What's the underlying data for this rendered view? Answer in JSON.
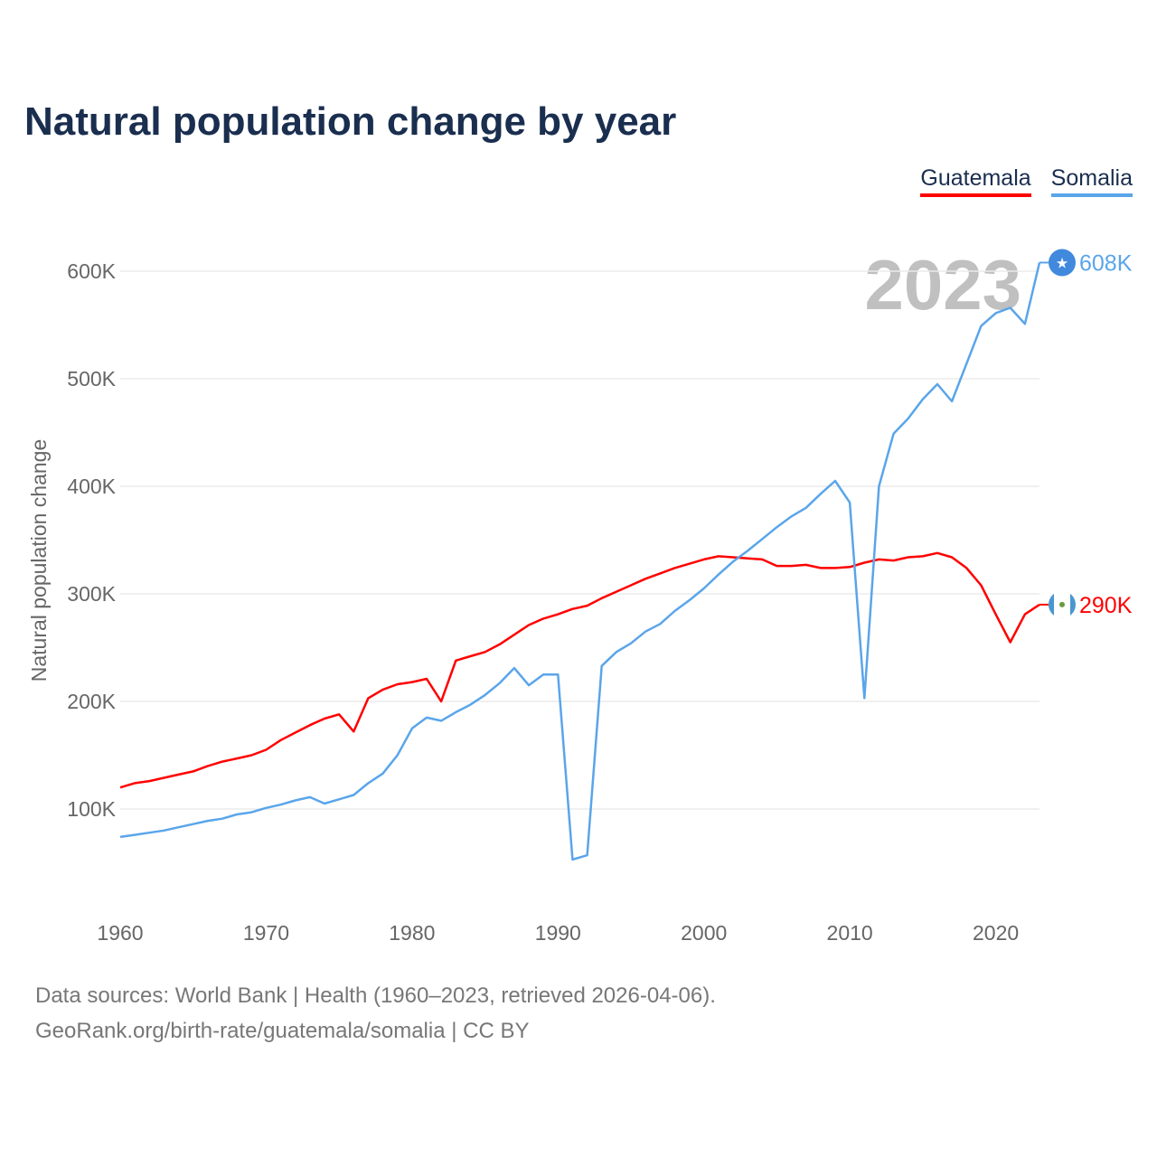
{
  "chart_data": {
    "type": "line",
    "title": "Natural population change by year",
    "ylabel": "Natural population change",
    "xlabel": "",
    "xlim": [
      1960,
      2023
    ],
    "ylim": [
      0,
      650000
    ],
    "x_ticks": [
      1960,
      1970,
      1980,
      1990,
      2000,
      2010,
      2020
    ],
    "y_ticks": [
      100000,
      200000,
      300000,
      400000,
      500000,
      600000
    ],
    "y_tick_labels": [
      "100K",
      "200K",
      "300K",
      "400K",
      "500K",
      "600K"
    ],
    "x_tick_labels": [
      "1960",
      "1970",
      "1980",
      "1990",
      "2000",
      "2010",
      "2020"
    ],
    "grid": true,
    "legend_placement": "top-right",
    "year_label": "2023",
    "series": [
      {
        "name": "Guatemala",
        "color": "#ff0000",
        "end_label": "290K",
        "flag_icon": "guatemala-flag-icon",
        "values": [
          120,
          124,
          126,
          129,
          132,
          135,
          140,
          144,
          147,
          150,
          155,
          164,
          171,
          178,
          184,
          188,
          172,
          203,
          211,
          216,
          218,
          221,
          200,
          238,
          242,
          246,
          253,
          262,
          271,
          277,
          281,
          286,
          289,
          296,
          302,
          308,
          314,
          319,
          324,
          328,
          332,
          335,
          334,
          333,
          332,
          326,
          326,
          327,
          324,
          324,
          325,
          329,
          332,
          331,
          334,
          335,
          338,
          334,
          324,
          308,
          281,
          255,
          281,
          290
        ]
      },
      {
        "name": "Somalia",
        "color": "#5aa5ea",
        "end_label": "608K",
        "flag_icon": "somalia-flag-icon",
        "values": [
          74,
          76,
          78,
          80,
          83,
          86,
          89,
          91,
          95,
          97,
          101,
          104,
          108,
          111,
          105,
          109,
          113,
          124,
          133,
          150,
          175,
          185,
          182,
          190,
          197,
          206,
          217,
          231,
          215,
          225,
          225,
          53,
          57,
          233,
          246,
          254,
          265,
          272,
          284,
          294,
          305,
          318,
          330,
          340,
          351,
          362,
          372,
          380,
          393,
          405,
          385,
          203,
          400,
          449,
          463,
          481,
          495,
          479,
          514,
          549,
          561,
          566,
          551,
          608
        ]
      }
    ],
    "value_unit": "thousands"
  },
  "footer": {
    "line1": "Data sources: World Bank | Health (1960–2023, retrieved 2026-04-06).",
    "line2": "GeoRank.org/birth-rate/guatemala/somalia | CC BY"
  }
}
